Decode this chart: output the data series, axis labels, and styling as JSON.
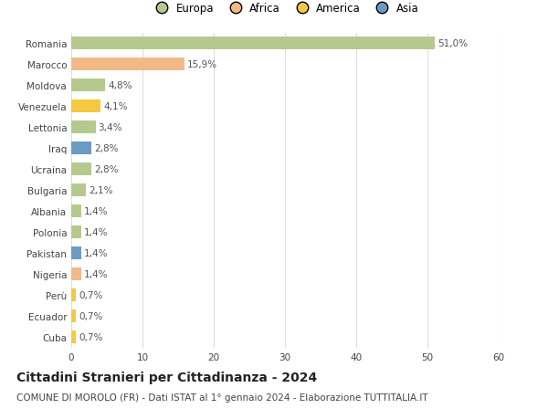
{
  "categories": [
    "Romania",
    "Marocco",
    "Moldova",
    "Venezuela",
    "Lettonia",
    "Iraq",
    "Ucraina",
    "Bulgaria",
    "Albania",
    "Polonia",
    "Pakistan",
    "Nigeria",
    "Perù",
    "Ecuador",
    "Cuba"
  ],
  "values": [
    51.0,
    15.9,
    4.8,
    4.1,
    3.4,
    2.8,
    2.8,
    2.1,
    1.4,
    1.4,
    1.4,
    1.4,
    0.7,
    0.7,
    0.7
  ],
  "labels": [
    "51,0%",
    "15,9%",
    "4,8%",
    "4,1%",
    "3,4%",
    "2,8%",
    "2,8%",
    "2,1%",
    "1,4%",
    "1,4%",
    "1,4%",
    "1,4%",
    "0,7%",
    "0,7%",
    "0,7%"
  ],
  "colors": [
    "#b5c98e",
    "#f0b987",
    "#b5c98e",
    "#f5c842",
    "#b5c98e",
    "#6b9bc3",
    "#b5c98e",
    "#b5c98e",
    "#b5c98e",
    "#b5c98e",
    "#6b9bc3",
    "#f0b987",
    "#f5c842",
    "#f5c842",
    "#f5c842"
  ],
  "legend_labels": [
    "Europa",
    "Africa",
    "America",
    "Asia"
  ],
  "legend_colors": [
    "#b5c98e",
    "#f0b987",
    "#f5c842",
    "#6b9bc3"
  ],
  "title": "Cittadini Stranieri per Cittadinanza - 2024",
  "subtitle": "COMUNE DI MOROLO (FR) - Dati ISTAT al 1° gennaio 2024 - Elaborazione TUTTITALIA.IT",
  "xlim": [
    0,
    60
  ],
  "xticks": [
    0,
    10,
    20,
    30,
    40,
    50,
    60
  ],
  "bg_color": "#ffffff",
  "bar_height": 0.62,
  "grid_color": "#dddddd",
  "label_fontsize": 7.5,
  "tick_fontsize": 7.5,
  "title_fontsize": 10,
  "subtitle_fontsize": 7.5
}
